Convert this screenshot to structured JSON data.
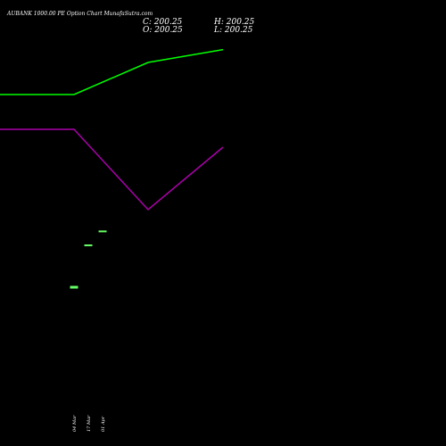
{
  "title": "AUBANK 1000.00 PE Option Chart MunafaSutra.com",
  "ohlc": {
    "close": "C: 200.25",
    "open": "O: 200.25",
    "high": "H: 200.25",
    "low": "L: 200.25"
  },
  "colors": {
    "background": "#000000",
    "text": "#ffffff",
    "green_line": "#00ff00",
    "purple_line": "#aa00aa",
    "candle": "#66ff66"
  },
  "chart_data": {
    "type": "line",
    "title": "AUBANK 1000.00 PE Option Chart MunafaSutra.com",
    "x_ticks": [
      "04 Mar",
      "17 Mar",
      "01 Apr"
    ],
    "series": [
      {
        "color": "#00ff00",
        "values": [
          1.0,
          1.0,
          0.75,
          0.65
        ]
      },
      {
        "color": "#aa00aa",
        "values": [
          1.0,
          1.0,
          0.1,
          0.8
        ]
      }
    ],
    "candles": [
      {
        "date": "04 Mar",
        "open": 1,
        "high": 1,
        "low": 1,
        "close": 1
      },
      {
        "date": "17 Mar",
        "open": 2.5,
        "high": 2.5,
        "low": 2.5,
        "close": 2.5
      },
      {
        "date": "01 Apr",
        "open": 3,
        "high": 3,
        "low": 3,
        "close": 3
      }
    ],
    "grid": false
  }
}
